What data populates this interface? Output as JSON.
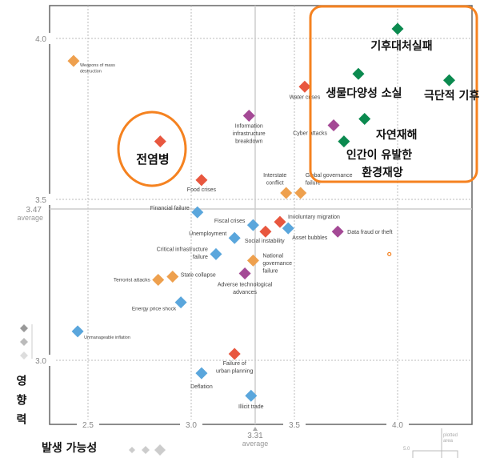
{
  "chart_data": {
    "type": "scatter",
    "xlabel": "발생 가능성",
    "ylabel": "영향력",
    "xlim": [
      2.3,
      4.35
    ],
    "ylim": [
      2.8,
      4.1
    ],
    "x_ticks": [
      "2.5",
      "3.0",
      "3.5",
      "4.0"
    ],
    "y_ticks": [
      "3.0",
      "3.5",
      "4.0"
    ],
    "x_average": {
      "value": "3.31",
      "label": "average"
    },
    "y_average": {
      "value": "3.47",
      "label": "average"
    },
    "grid": true,
    "colors": {
      "geopolitical": "#eea04e",
      "societal": "#e8573f",
      "economic": "#5aa6dc",
      "technological": "#a44995",
      "environmental": "#0b8a4f"
    },
    "points": [
      {
        "label": "Weapons of mass destruction",
        "x": 2.43,
        "y": 3.93,
        "cat": "geopolitical"
      },
      {
        "label": "",
        "x": 2.85,
        "y": 3.68,
        "cat": "societal"
      },
      {
        "label": "Food crises",
        "x": 3.05,
        "y": 3.56,
        "cat": "societal"
      },
      {
        "label": "Financial failure",
        "x": 3.03,
        "y": 3.46,
        "cat": "economic"
      },
      {
        "label": "Information infrastructure breakdown",
        "x": 3.28,
        "y": 3.76,
        "cat": "technological"
      },
      {
        "label": "Water crises",
        "x": 3.55,
        "y": 3.85,
        "cat": "societal"
      },
      {
        "label": "Cyber attacks",
        "x": 3.69,
        "y": 3.73,
        "cat": "technological"
      },
      {
        "label": "Interstate conflict",
        "x": 3.46,
        "y": 3.52,
        "cat": "geopolitical"
      },
      {
        "label": "Global governance failure",
        "x": 3.53,
        "y": 3.52,
        "cat": "geopolitical"
      },
      {
        "label": "",
        "x": 4.0,
        "y": 4.03,
        "cat": "environmental"
      },
      {
        "label": "",
        "x": 3.81,
        "y": 3.89,
        "cat": "environmental"
      },
      {
        "label": "",
        "x": 4.25,
        "y": 3.87,
        "cat": "environmental"
      },
      {
        "label": "",
        "x": 3.84,
        "y": 3.75,
        "cat": "environmental"
      },
      {
        "label": "",
        "x": 3.74,
        "y": 3.68,
        "cat": "environmental"
      },
      {
        "label": "Fiscal crises",
        "x": 3.3,
        "y": 3.42,
        "cat": "economic"
      },
      {
        "label": "Involuntary migration",
        "x": 3.43,
        "y": 3.43,
        "cat": "societal"
      },
      {
        "label": "Social instability",
        "x": 3.36,
        "y": 3.4,
        "cat": "societal"
      },
      {
        "label": "Asset bubbles",
        "x": 3.47,
        "y": 3.41,
        "cat": "economic"
      },
      {
        "label": "Data fraud or theft",
        "x": 3.71,
        "y": 3.4,
        "cat": "technological"
      },
      {
        "label": "Unemployment",
        "x": 3.21,
        "y": 3.38,
        "cat": "economic"
      },
      {
        "label": "Critical infrastructure failure",
        "x": 3.12,
        "y": 3.33,
        "cat": "economic"
      },
      {
        "label": "National governance failure",
        "x": 3.3,
        "y": 3.31,
        "cat": "geopolitical"
      },
      {
        "label": "Adverse technological advances",
        "x": 3.26,
        "y": 3.27,
        "cat": "technological"
      },
      {
        "label": "State collapse",
        "x": 2.91,
        "y": 3.26,
        "cat": "geopolitical"
      },
      {
        "label": "Terrorist attacks",
        "x": 2.84,
        "y": 3.25,
        "cat": "geopolitical"
      },
      {
        "label": "Energy price shock",
        "x": 2.95,
        "y": 3.18,
        "cat": "economic"
      },
      {
        "label": "Unmanageable inflation",
        "x": 2.45,
        "y": 3.09,
        "cat": "economic"
      },
      {
        "label": "Failure of urban planning",
        "x": 3.21,
        "y": 3.02,
        "cat": "societal"
      },
      {
        "label": "Deflation",
        "x": 3.05,
        "y": 2.96,
        "cat": "economic"
      },
      {
        "label": "Illicit trade",
        "x": 3.29,
        "y": 2.89,
        "cat": "economic"
      }
    ],
    "annotations": {
      "pandemic": "전염병",
      "climate_failure": "기후대처실패",
      "biodiversity": "생물다양성 소실",
      "extreme_weather": "극단적 기후",
      "natural_disasters": "자연재해",
      "manmade_1": "인간이 유발한",
      "manmade_2": "환경재앙"
    },
    "highlight_color": "#f58220",
    "inset": {
      "label_1": "plotted",
      "label_2": "area",
      "tick": "5.0"
    }
  }
}
